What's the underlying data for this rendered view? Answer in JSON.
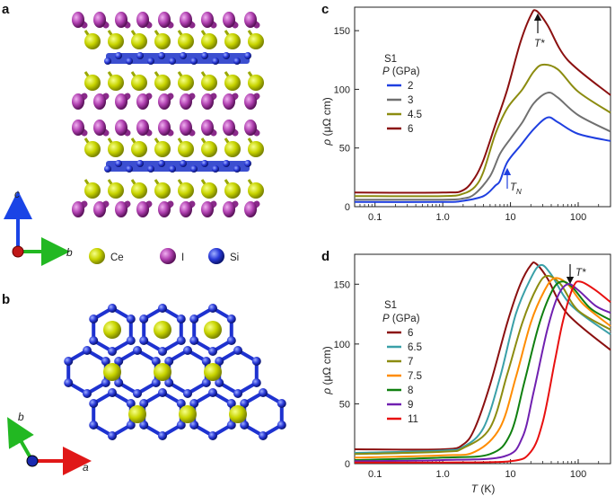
{
  "panels": {
    "a": "a",
    "b": "b",
    "c": "c",
    "d": "d"
  },
  "crystal_legend": {
    "items": [
      {
        "label": "Ce",
        "color": "#c8d400"
      },
      {
        "label": "I",
        "color": "#c050c0"
      },
      {
        "label": "Si",
        "color": "#2a3ad8"
      }
    ]
  },
  "axes_a": {
    "c": "c",
    "b": "b"
  },
  "axes_b": {
    "b": "b",
    "a": "a"
  },
  "plot_c": {
    "sample": "S1",
    "legend_title_var": "P",
    "legend_title_unit": " (GPa)",
    "ylabel_var": "ρ",
    "ylabel_unit": " (μΩ cm)",
    "annot_tstar": "T*",
    "annot_tn_main": "T",
    "annot_tn_sub": "N",
    "xticks": [
      "0.1",
      "1.0",
      "10",
      "100"
    ],
    "yticks": [
      "0",
      "50",
      "100",
      "150"
    ]
  },
  "plot_d": {
    "sample": "S1",
    "legend_title_var": "P",
    "legend_title_unit": " (GPa)",
    "ylabel_var": "ρ",
    "ylabel_unit": " (μΩ cm)",
    "xlabel_var": "T",
    "xlabel_unit": " (K)",
    "annot_tstar": "T*",
    "xticks": [
      "0.1",
      "1.0",
      "10",
      "100"
    ],
    "yticks": [
      "0",
      "50",
      "100",
      "150"
    ]
  },
  "chart_data": [
    {
      "type": "line",
      "panel": "c",
      "log_x": true,
      "xlim": [
        0.05,
        300
      ],
      "ylim": [
        0,
        170
      ],
      "series": [
        {
          "name": "2",
          "color": "#1f3fe0",
          "points": [
            [
              0.05,
              4
            ],
            [
              1,
              4
            ],
            [
              2,
              5
            ],
            [
              4,
              9
            ],
            [
              6,
              18
            ],
            [
              7,
              22
            ],
            [
              9,
              38
            ],
            [
              14,
              52
            ],
            [
              22,
              66
            ],
            [
              35,
              76
            ],
            [
              50,
              72
            ],
            [
              100,
              62
            ],
            [
              300,
              56
            ]
          ]
        },
        {
          "name": "3",
          "color": "#707070",
          "points": [
            [
              0.05,
              6
            ],
            [
              1,
              6
            ],
            [
              2,
              7
            ],
            [
              3,
              11
            ],
            [
              5,
              26
            ],
            [
              7,
              45
            ],
            [
              10,
              58
            ],
            [
              15,
              72
            ],
            [
              22,
              88
            ],
            [
              35,
              97
            ],
            [
              50,
              93
            ],
            [
              100,
              78
            ],
            [
              300,
              64
            ]
          ]
        },
        {
          "name": "4.5",
          "color": "#8c8c10",
          "points": [
            [
              0.05,
              9
            ],
            [
              1,
              9
            ],
            [
              2,
              11
            ],
            [
              3,
              17
            ],
            [
              4,
              30
            ],
            [
              6,
              62
            ],
            [
              9,
              84
            ],
            [
              15,
              100
            ],
            [
              22,
              115
            ],
            [
              30,
              121
            ],
            [
              50,
              117
            ],
            [
              100,
              98
            ],
            [
              300,
              80
            ]
          ]
        },
        {
          "name": "6",
          "color": "#8b1010",
          "points": [
            [
              0.05,
              12
            ],
            [
              1,
              12
            ],
            [
              2,
              14
            ],
            [
              3,
              25
            ],
            [
              4,
              40
            ],
            [
              6,
              70
            ],
            [
              9,
              100
            ],
            [
              14,
              140
            ],
            [
              20,
              163
            ],
            [
              24,
              167
            ],
            [
              35,
              155
            ],
            [
              70,
              125
            ],
            [
              300,
              95
            ]
          ]
        }
      ]
    },
    {
      "type": "line",
      "panel": "d",
      "log_x": true,
      "xlim": [
        0.05,
        300
      ],
      "ylim": [
        0,
        175
      ],
      "series": [
        {
          "name": "6",
          "color": "#8b1010",
          "points": [
            [
              0.05,
              12
            ],
            [
              1,
              12
            ],
            [
              2,
              16
            ],
            [
              3,
              30
            ],
            [
              5,
              66
            ],
            [
              9,
              118
            ],
            [
              14,
              150
            ],
            [
              20,
              166
            ],
            [
              24,
              167
            ],
            [
              35,
              155
            ],
            [
              70,
              125
            ],
            [
              300,
              95
            ]
          ]
        },
        {
          "name": "6.5",
          "color": "#3aa0a8",
          "points": [
            [
              0.05,
              9
            ],
            [
              1,
              11
            ],
            [
              2,
              14
            ],
            [
              4,
              30
            ],
            [
              7,
              72
            ],
            [
              12,
              125
            ],
            [
              20,
              155
            ],
            [
              28,
              166
            ],
            [
              40,
              158
            ],
            [
              80,
              132
            ],
            [
              300,
              108
            ]
          ]
        },
        {
          "name": "7",
          "color": "#8c8c10",
          "points": [
            [
              0.05,
              8
            ],
            [
              1,
              10
            ],
            [
              2,
              13
            ],
            [
              5,
              30
            ],
            [
              9,
              75
            ],
            [
              15,
              118
            ],
            [
              25,
              148
            ],
            [
              35,
              157
            ],
            [
              55,
              150
            ],
            [
              100,
              128
            ],
            [
              300,
              112
            ]
          ]
        },
        {
          "name": "7.5",
          "color": "#ff8c00",
          "points": [
            [
              0.05,
              5
            ],
            [
              1,
              7
            ],
            [
              3,
              10
            ],
            [
              7,
              30
            ],
            [
              12,
              72
            ],
            [
              20,
              118
            ],
            [
              32,
              145
            ],
            [
              45,
              155
            ],
            [
              70,
              150
            ],
            [
              120,
              133
            ],
            [
              300,
              115
            ]
          ]
        },
        {
          "name": "8",
          "color": "#108010",
          "points": [
            [
              0.05,
              3
            ],
            [
              1,
              5
            ],
            [
              5,
              8
            ],
            [
              10,
              25
            ],
            [
              16,
              68
            ],
            [
              26,
              115
            ],
            [
              40,
              143
            ],
            [
              55,
              152
            ],
            [
              80,
              148
            ],
            [
              150,
              130
            ],
            [
              300,
              120
            ]
          ]
        },
        {
          "name": "9",
          "color": "#7020b0",
          "points": [
            [
              0.05,
              2
            ],
            [
              1,
              3
            ],
            [
              8,
              6
            ],
            [
              15,
              22
            ],
            [
              22,
              60
            ],
            [
              35,
              112
            ],
            [
              50,
              140
            ],
            [
              70,
              150
            ],
            [
              100,
              145
            ],
            [
              180,
              132
            ],
            [
              300,
              126
            ]
          ]
        },
        {
          "name": "11",
          "color": "#e81010",
          "points": [
            [
              0.05,
              1
            ],
            [
              1,
              1
            ],
            [
              10,
              2
            ],
            [
              20,
              10
            ],
            [
              30,
              35
            ],
            [
              45,
              85
            ],
            [
              60,
              120
            ],
            [
              85,
              148
            ],
            [
              110,
              152
            ],
            [
              180,
              145
            ],
            [
              300,
              135
            ]
          ]
        }
      ]
    }
  ]
}
